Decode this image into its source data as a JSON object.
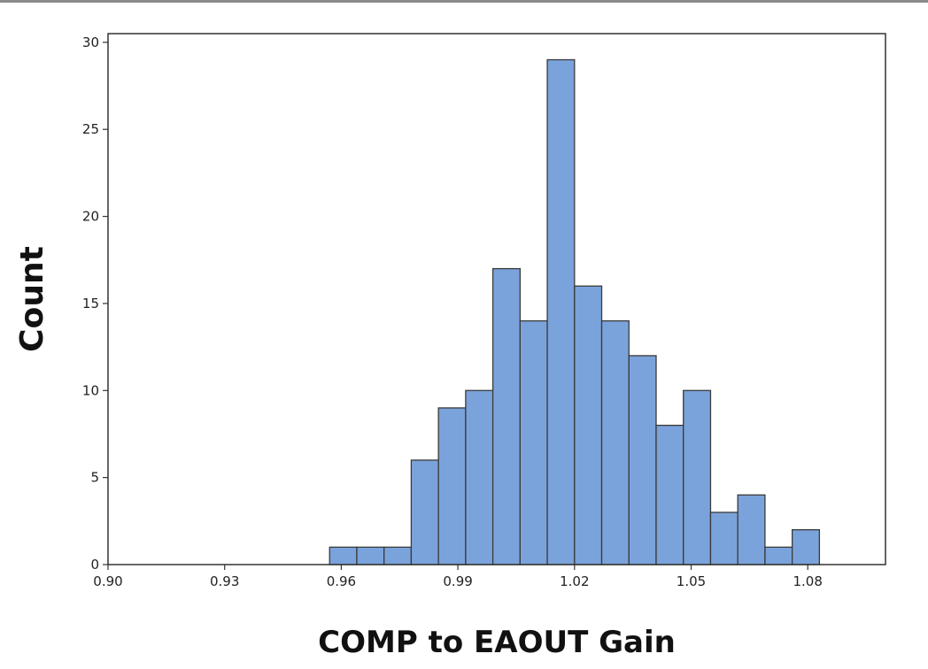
{
  "chart_data": {
    "type": "bar",
    "title": "",
    "xlabel": "COMP to EAOUT Gain",
    "ylabel": "Count",
    "xlim": [
      0.9,
      1.1
    ],
    "ylim": [
      0,
      30.5
    ],
    "x_ticks": [
      "0.90",
      "0.93",
      "0.96",
      "0.99",
      "1.02",
      "1.05",
      "1.08"
    ],
    "y_ticks": [
      "0",
      "5",
      "10",
      "15",
      "20",
      "25",
      "30"
    ],
    "bin_width": 0.007,
    "bins": [
      {
        "start": 0.957,
        "end": 0.964,
        "count": 1
      },
      {
        "start": 0.964,
        "end": 0.971,
        "count": 1
      },
      {
        "start": 0.971,
        "end": 0.978,
        "count": 1
      },
      {
        "start": 0.978,
        "end": 0.985,
        "count": 6
      },
      {
        "start": 0.985,
        "end": 0.992,
        "count": 9
      },
      {
        "start": 0.992,
        "end": 0.999,
        "count": 10
      },
      {
        "start": 0.999,
        "end": 1.006,
        "count": 17
      },
      {
        "start": 1.006,
        "end": 1.013,
        "count": 14
      },
      {
        "start": 1.013,
        "end": 1.02,
        "count": 29
      },
      {
        "start": 1.02,
        "end": 1.027,
        "count": 16
      },
      {
        "start": 1.027,
        "end": 1.034,
        "count": 14
      },
      {
        "start": 1.034,
        "end": 1.041,
        "count": 12
      },
      {
        "start": 1.041,
        "end": 1.048,
        "count": 8
      },
      {
        "start": 1.048,
        "end": 1.055,
        "count": 10
      },
      {
        "start": 1.055,
        "end": 1.062,
        "count": 3
      },
      {
        "start": 1.062,
        "end": 1.069,
        "count": 4
      },
      {
        "start": 1.069,
        "end": 1.076,
        "count": 1
      },
      {
        "start": 1.076,
        "end": 1.083,
        "count": 2
      }
    ],
    "grid": false,
    "legend": "none",
    "colors": {
      "bar_fill": "#7ba3db",
      "bar_edge": "#3a3a3a",
      "frame": "#333333"
    }
  }
}
